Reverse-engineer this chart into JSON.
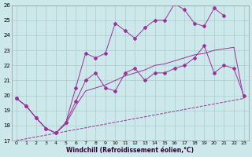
{
  "xlabel": "Windchill (Refroidissement éolien,°C)",
  "bg_color": "#cce8ea",
  "grid_color": "#aacccc",
  "line_color": "#993399",
  "xmin": 0,
  "xmax": 23,
  "ymin": 17,
  "ymax": 26,
  "yticks": [
    17,
    18,
    19,
    20,
    21,
    22,
    23,
    24,
    25,
    26
  ],
  "xticks": [
    0,
    1,
    2,
    3,
    4,
    5,
    6,
    7,
    8,
    9,
    10,
    11,
    12,
    13,
    14,
    15,
    16,
    17,
    18,
    19,
    20,
    21,
    22,
    23
  ],
  "line1_x": [
    0,
    23
  ],
  "line1_y": [
    17.0,
    19.8
  ],
  "line2_x": [
    0,
    1,
    2,
    3,
    4,
    5,
    6,
    7,
    8,
    9,
    10,
    11,
    12,
    13,
    14,
    15,
    16,
    17,
    18,
    19,
    20,
    21,
    22,
    23
  ],
  "line2_y": [
    19.8,
    19.3,
    18.5,
    17.8,
    17.5,
    18.1,
    19.3,
    20.3,
    20.5,
    20.7,
    21.0,
    21.3,
    21.5,
    21.7,
    22.0,
    22.1,
    22.3,
    22.5,
    22.7,
    22.8,
    23.0,
    23.1,
    23.2,
    19.8
  ],
  "line3_x": [
    0,
    1,
    2,
    3,
    4,
    5,
    6,
    7,
    8,
    9,
    10,
    11,
    12,
    13,
    14,
    15,
    16,
    17,
    18,
    19,
    20,
    21,
    22,
    23
  ],
  "line3_y": [
    19.8,
    19.3,
    18.5,
    17.8,
    17.5,
    18.2,
    19.6,
    21.0,
    21.5,
    20.5,
    20.3,
    21.5,
    21.8,
    21.0,
    21.5,
    21.5,
    21.8,
    22.0,
    22.5,
    23.3,
    21.5,
    22.0,
    21.8,
    20.0
  ],
  "line4_x": [
    0,
    1,
    2,
    3,
    4,
    5,
    6,
    7,
    8,
    9,
    10,
    11,
    12,
    13,
    14,
    15,
    16,
    17,
    18,
    19,
    20,
    21
  ],
  "line4_y": [
    19.8,
    19.3,
    18.5,
    17.8,
    17.5,
    18.2,
    20.5,
    22.8,
    22.5,
    22.8,
    24.8,
    24.3,
    23.8,
    24.5,
    25.0,
    25.0,
    26.1,
    25.7,
    24.8,
    24.6,
    25.8,
    25.3
  ]
}
